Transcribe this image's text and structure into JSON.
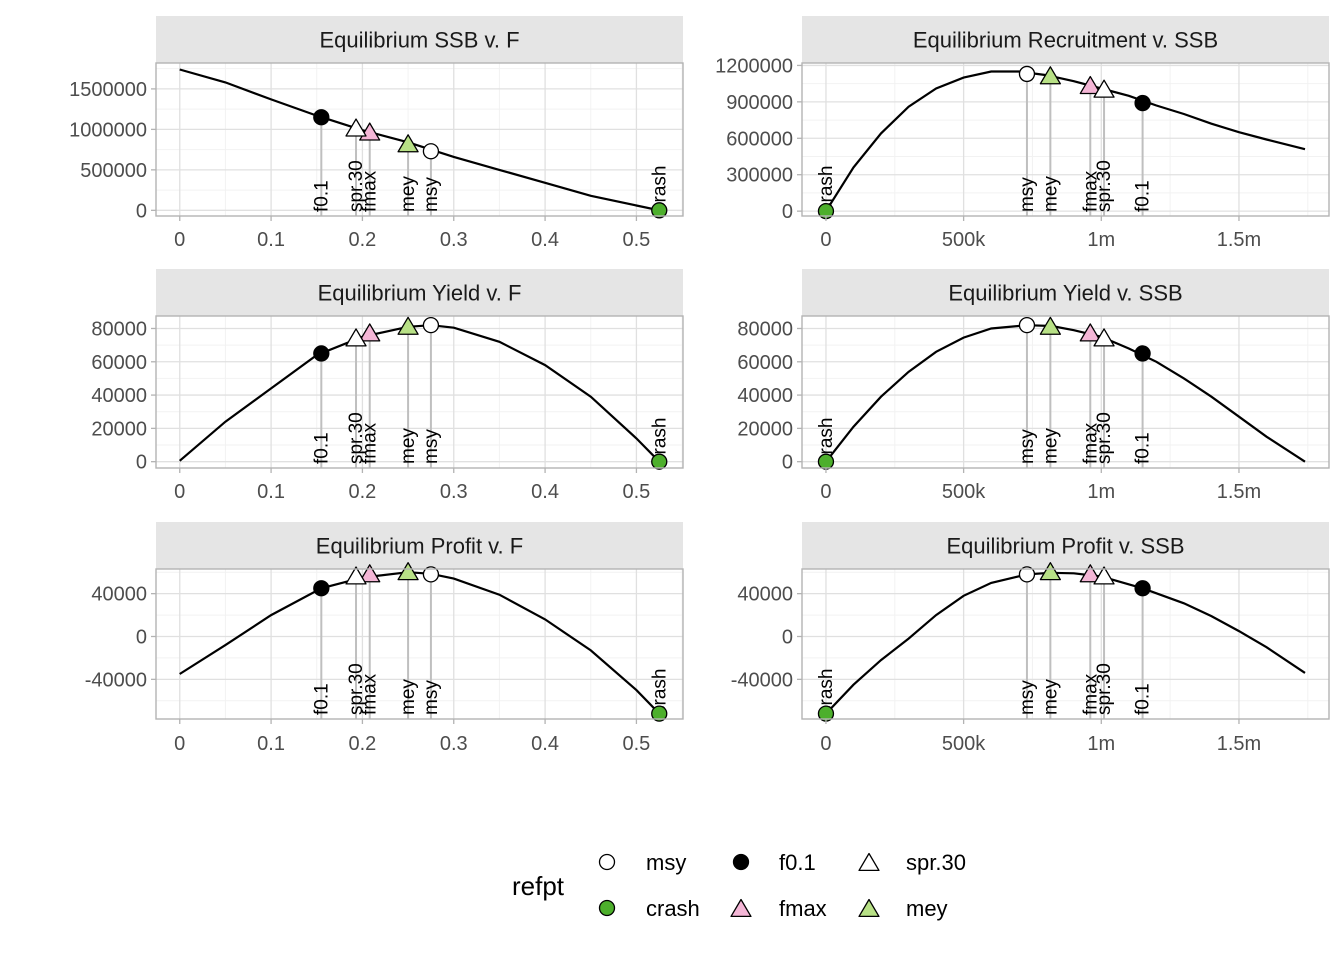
{
  "chart_data": {
    "type": "line",
    "title": "",
    "reference_points": [
      {
        "name": "msy",
        "label": "msy",
        "F": 0.275,
        "SSB": 730000,
        "Recruitment": 1130000,
        "Yield": 82000,
        "Profit": 58000,
        "shape": "circle",
        "fill": "#ffffff"
      },
      {
        "name": "crash",
        "label": "crash",
        "F": 0.525,
        "SSB": 0,
        "Recruitment": 0,
        "Yield": 0,
        "Profit": -72000,
        "shape": "circle",
        "fill": "#4daf2c"
      },
      {
        "name": "f0.1",
        "label": "f0.1",
        "F": 0.155,
        "SSB": 1150000,
        "Recruitment": 890000,
        "Yield": 65000,
        "Profit": 45000,
        "shape": "circle",
        "fill": "#000000"
      },
      {
        "name": "fmax",
        "label": "fmax",
        "F": 0.208,
        "SSB": 960000,
        "Recruitment": 1030000,
        "Yield": 77000,
        "Profit": 58000,
        "shape": "triangle",
        "fill": "#f4b6d6"
      },
      {
        "name": "spr.30",
        "label": "spr.30",
        "F": 0.193,
        "SSB": 1010000,
        "Recruitment": 1000000,
        "Yield": 74000,
        "Profit": 56000,
        "shape": "triangle",
        "fill": "#ffffff"
      },
      {
        "name": "mey",
        "label": "mey",
        "F": 0.25,
        "SSB": 815000,
        "Recruitment": 1110000,
        "Yield": 81000,
        "Profit": 60000,
        "shape": "triangle",
        "fill": "#b8e186"
      }
    ],
    "panels": [
      {
        "id": "ssb_f",
        "title": "Equilibrium SSB v. F",
        "xvar": "F",
        "yvar": "SSB",
        "xlim": [
          -0.026,
          0.551
        ],
        "ylim": [
          -70000,
          1820000
        ],
        "xticks": [
          0,
          0.1,
          0.2,
          0.3,
          0.4,
          0.5
        ],
        "xtick_labels": [
          "0",
          "0.1",
          "0.2",
          "0.3",
          "0.4",
          "0.5"
        ],
        "yticks": [
          0,
          500000,
          1000000,
          1500000
        ],
        "ytick_labels": [
          "0",
          "500000",
          "1000000",
          "1500000"
        ],
        "curve": {
          "x": [
            0,
            0.05,
            0.1,
            0.15,
            0.2,
            0.25,
            0.3,
            0.35,
            0.4,
            0.45,
            0.5,
            0.525
          ],
          "y": [
            1740000,
            1580000,
            1370000,
            1170000,
            990000,
            840000,
            660000,
            500000,
            340000,
            180000,
            60000,
            0
          ]
        }
      },
      {
        "id": "rec_ssb",
        "title": "Equilibrium Recruitment v. SSB",
        "xvar": "SSB",
        "yvar": "Recruitment",
        "xlim": [
          -87000,
          1827000
        ],
        "ylim": [
          -40000,
          1220000
        ],
        "xticks": [
          0,
          500000,
          1000000,
          1500000
        ],
        "xtick_labels": [
          "0",
          "500k",
          "1m",
          "1.5m"
        ],
        "yticks": [
          0,
          300000,
          600000,
          900000,
          1200000
        ],
        "ytick_labels": [
          "0",
          "300000",
          "600000",
          "900000",
          "1200000"
        ],
        "curve": {
          "x": [
            0,
            100000,
            200000,
            300000,
            400000,
            500000,
            600000,
            700000,
            800000,
            900000,
            1000000,
            1100000,
            1200000,
            1300000,
            1400000,
            1500000,
            1600000,
            1740000
          ],
          "y": [
            0,
            360000,
            640000,
            860000,
            1010000,
            1100000,
            1150000,
            1150000,
            1120000,
            1070000,
            1010000,
            950000,
            870000,
            800000,
            720000,
            650000,
            590000,
            510000
          ]
        }
      },
      {
        "id": "yield_f",
        "title": "Equilibrium Yield v. F",
        "xvar": "F",
        "yvar": "Yield",
        "xlim": [
          -0.026,
          0.551
        ],
        "ylim": [
          -3800,
          87500
        ],
        "xticks": [
          0,
          0.1,
          0.2,
          0.3,
          0.4,
          0.5
        ],
        "xtick_labels": [
          "0",
          "0.1",
          "0.2",
          "0.3",
          "0.4",
          "0.5"
        ],
        "yticks": [
          0,
          20000,
          40000,
          60000,
          80000
        ],
        "ytick_labels": [
          "0",
          "20000",
          "40000",
          "60000",
          "80000"
        ],
        "curve": {
          "x": [
            0,
            0.05,
            0.1,
            0.15,
            0.2,
            0.25,
            0.275,
            0.3,
            0.35,
            0.4,
            0.45,
            0.5,
            0.525
          ],
          "y": [
            500,
            24000,
            44000,
            64000,
            75000,
            81000,
            82000,
            80500,
            72000,
            58000,
            39000,
            14000,
            0
          ]
        }
      },
      {
        "id": "yield_ssb",
        "title": "Equilibrium Yield v. SSB",
        "xvar": "SSB",
        "yvar": "Yield",
        "xlim": [
          -87000,
          1827000
        ],
        "ylim": [
          -3800,
          87500
        ],
        "xticks": [
          0,
          500000,
          1000000,
          1500000
        ],
        "xtick_labels": [
          "0",
          "500k",
          "1m",
          "1.5m"
        ],
        "yticks": [
          0,
          20000,
          40000,
          60000,
          80000
        ],
        "ytick_labels": [
          "0",
          "20000",
          "40000",
          "60000",
          "80000"
        ],
        "curve": {
          "x": [
            0,
            100000,
            200000,
            300000,
            400000,
            500000,
            600000,
            730000,
            820000,
            900000,
            1000000,
            1100000,
            1200000,
            1300000,
            1400000,
            1500000,
            1600000,
            1740000
          ],
          "y": [
            0,
            21000,
            39000,
            54000,
            66000,
            74500,
            80000,
            82000,
            81500,
            79000,
            75000,
            68000,
            60000,
            50000,
            39000,
            27000,
            15000,
            0
          ]
        }
      },
      {
        "id": "profit_f",
        "title": "Equilibrium Profit v. F",
        "xvar": "F",
        "yvar": "Profit",
        "xlim": [
          -0.026,
          0.551
        ],
        "ylim": [
          -77000,
          63000
        ],
        "xticks": [
          0,
          0.1,
          0.2,
          0.3,
          0.4,
          0.5
        ],
        "xtick_labels": [
          "0",
          "0.1",
          "0.2",
          "0.3",
          "0.4",
          "0.5"
        ],
        "yticks": [
          -40000,
          0,
          40000
        ],
        "ytick_labels": [
          "-40000",
          "0",
          "40000"
        ],
        "curve": {
          "x": [
            0,
            0.05,
            0.1,
            0.155,
            0.2,
            0.25,
            0.275,
            0.3,
            0.35,
            0.4,
            0.45,
            0.5,
            0.525
          ],
          "y": [
            -35000,
            -8000,
            20000,
            45000,
            55000,
            60000,
            58500,
            54000,
            39000,
            16000,
            -13000,
            -50000,
            -72000
          ]
        }
      },
      {
        "id": "profit_ssb",
        "title": "Equilibrium Profit v. SSB",
        "xvar": "SSB",
        "yvar": "Profit",
        "xlim": [
          -87000,
          1827000
        ],
        "ylim": [
          -77000,
          63000
        ],
        "xticks": [
          0,
          500000,
          1000000,
          1500000
        ],
        "xtick_labels": [
          "0",
          "500k",
          "1m",
          "1.5m"
        ],
        "yticks": [
          -40000,
          0,
          40000
        ],
        "ytick_labels": [
          "-40000",
          "0",
          "40000"
        ],
        "curve": {
          "x": [
            0,
            100000,
            200000,
            300000,
            400000,
            500000,
            600000,
            730000,
            815000,
            900000,
            1000000,
            1150000,
            1300000,
            1400000,
            1500000,
            1600000,
            1740000
          ],
          "y": [
            -72000,
            -45000,
            -22000,
            -2000,
            20000,
            38000,
            50000,
            58000,
            59500,
            59000,
            56000,
            45000,
            31000,
            19000,
            5000,
            -10000,
            -34000
          ]
        }
      }
    ],
    "legend": {
      "title": "refpt",
      "position": "bottom",
      "items": [
        {
          "name": "msy",
          "label": "msy",
          "shape": "circle",
          "fill": "#ffffff"
        },
        {
          "name": "crash",
          "label": "crash",
          "shape": "circle",
          "fill": "#4daf2c"
        },
        {
          "name": "f0.1",
          "label": "f0.1",
          "shape": "circle",
          "fill": "#000000"
        },
        {
          "name": "fmax",
          "label": "fmax",
          "shape": "triangle",
          "fill": "#f4b6d6"
        },
        {
          "name": "spr.30",
          "label": "spr.30",
          "shape": "triangle",
          "fill": "#ffffff"
        },
        {
          "name": "mey",
          "label": "mey",
          "shape": "triangle",
          "fill": "#b8e186"
        }
      ]
    },
    "colors": {
      "strip_background": "#e5e5e5",
      "panel_border": "#b3b3b3",
      "grid_major": "#e0e0e0",
      "grid_minor": "#f2f2f2",
      "curve": "#000000",
      "drop_line": "#bfbfbf"
    }
  }
}
